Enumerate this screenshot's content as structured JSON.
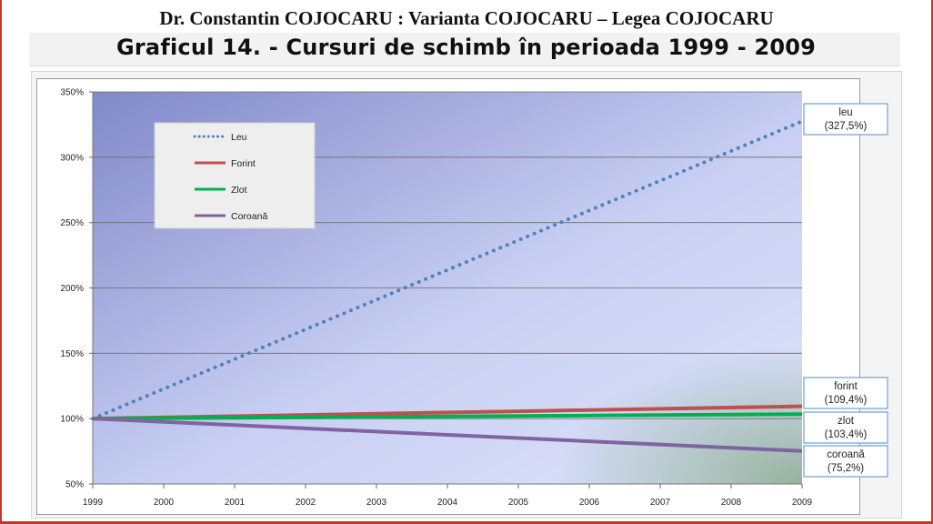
{
  "header": {
    "author_line": "Dr. Constantin COJOCARU : Varianta COJOCARU – Legea COJOCARU",
    "chart_title": "Graficul 14.  - Cursuri de schimb în perioada 1999 - 2009"
  },
  "chart_data": {
    "type": "line",
    "title": "Graficul 14.  - Cursuri de schimb în perioada 1999 - 2009",
    "x": [
      "1999",
      "2000",
      "2001",
      "2002",
      "2003",
      "2004",
      "2005",
      "2006",
      "2007",
      "2008",
      "2009"
    ],
    "ylim": [
      50,
      350
    ],
    "yticks": [
      "50%",
      "100%",
      "150%",
      "200%",
      "250%",
      "300%",
      "350%"
    ],
    "ytick_values": [
      50,
      100,
      150,
      200,
      250,
      300,
      350
    ],
    "grid": true,
    "legend_position": "top-left",
    "series": [
      {
        "name": "Leu",
        "color": "#4f81bd",
        "style": "dotted",
        "values": [
          100,
          122.75,
          145.5,
          168.25,
          191,
          213.75,
          236.5,
          259.25,
          282,
          304.75,
          327.5
        ]
      },
      {
        "name": "Forint",
        "color": "#c0504d",
        "style": "solid",
        "values": [
          100,
          100.94,
          101.88,
          102.82,
          103.76,
          104.7,
          105.64,
          106.58,
          107.52,
          108.46,
          109.4
        ]
      },
      {
        "name": "Zlot",
        "color": "#00b050",
        "style": "solid",
        "values": [
          100,
          100.34,
          100.68,
          101.02,
          101.36,
          101.7,
          102.04,
          102.38,
          102.72,
          103.06,
          103.4
        ]
      },
      {
        "name": "Coroană",
        "color": "#8064a2",
        "style": "solid",
        "values": [
          100,
          97.52,
          95.04,
          92.56,
          90.08,
          87.6,
          85.12,
          82.64,
          80.16,
          77.68,
          75.2
        ]
      }
    ],
    "annotations": [
      {
        "series": "Leu",
        "line1": "leu",
        "line2": "(327,5%)"
      },
      {
        "series": "Forint",
        "line1": "forint",
        "line2": "(109,4%)"
      },
      {
        "series": "Zlot",
        "line1": "zlot",
        "line2": "(103,4%)"
      },
      {
        "series": "Coroană",
        "line1": "coroană",
        "line2": "(75,2%)"
      }
    ]
  }
}
